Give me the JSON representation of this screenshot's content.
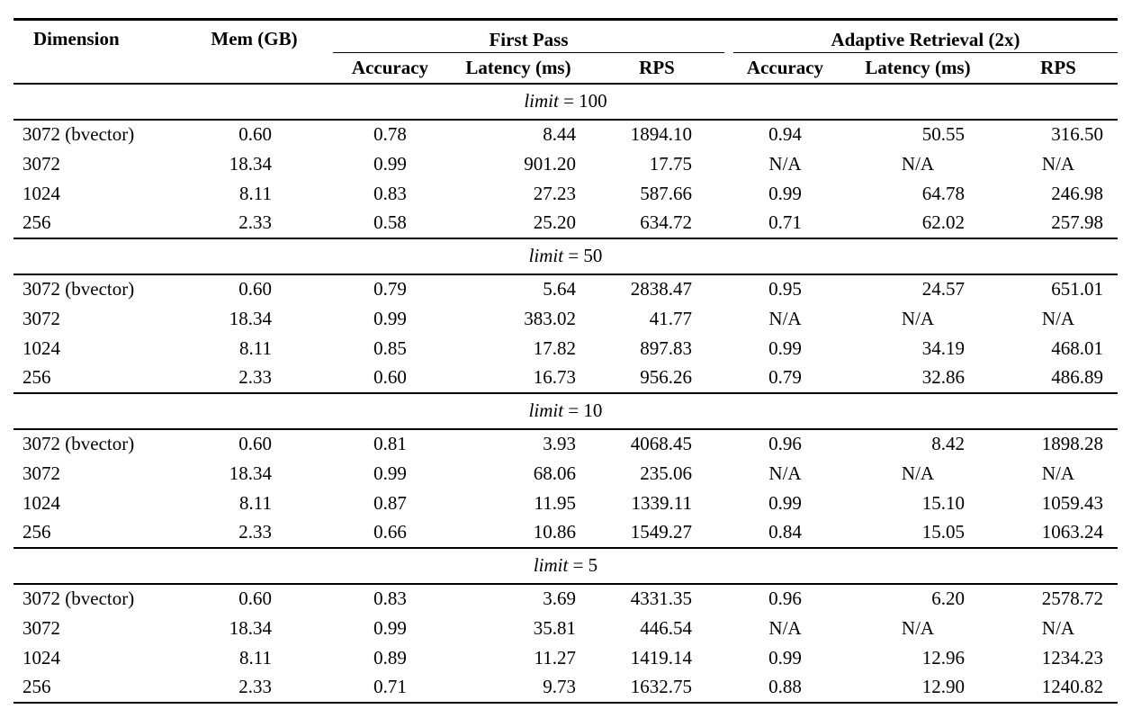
{
  "table": {
    "headers": {
      "dimension": "Dimension",
      "mem": "Mem (GB)",
      "group_first_pass": "First Pass",
      "group_adaptive": "Adaptive Retrieval (2x)",
      "sub": [
        "Accuracy",
        "Latency (ms)",
        "RPS",
        "Accuracy",
        "Latency (ms)",
        "RPS"
      ]
    },
    "sections": [
      {
        "limit_var": "limit",
        "limit_eq": "= 100",
        "rows": [
          [
            "3072 (bvector)",
            "0.60",
            "0.78",
            "8.44",
            "1894.10",
            "0.94",
            "50.55",
            "316.50"
          ],
          [
            "3072",
            "18.34",
            "0.99",
            "901.20",
            "17.75",
            "N/A",
            "N/A",
            "N/A"
          ],
          [
            "1024",
            "8.11",
            "0.83",
            "27.23",
            "587.66",
            "0.99",
            "64.78",
            "246.98"
          ],
          [
            "256",
            "2.33",
            "0.58",
            "25.20",
            "634.72",
            "0.71",
            "62.02",
            "257.98"
          ]
        ]
      },
      {
        "limit_var": "limit",
        "limit_eq": "= 50",
        "rows": [
          [
            "3072 (bvector)",
            "0.60",
            "0.79",
            "5.64",
            "2838.47",
            "0.95",
            "24.57",
            "651.01"
          ],
          [
            "3072",
            "18.34",
            "0.99",
            "383.02",
            "41.77",
            "N/A",
            "N/A",
            "N/A"
          ],
          [
            "1024",
            "8.11",
            "0.85",
            "17.82",
            "897.83",
            "0.99",
            "34.19",
            "468.01"
          ],
          [
            "256",
            "2.33",
            "0.60",
            "16.73",
            "956.26",
            "0.79",
            "32.86",
            "486.89"
          ]
        ]
      },
      {
        "limit_var": "limit",
        "limit_eq": "= 10",
        "rows": [
          [
            "3072 (bvector)",
            "0.60",
            "0.81",
            "3.93",
            "4068.45",
            "0.96",
            "8.42",
            "1898.28"
          ],
          [
            "3072",
            "18.34",
            "0.99",
            "68.06",
            "235.06",
            "N/A",
            "N/A",
            "N/A"
          ],
          [
            "1024",
            "8.11",
            "0.87",
            "11.95",
            "1339.11",
            "0.99",
            "15.10",
            "1059.43"
          ],
          [
            "256",
            "2.33",
            "0.66",
            "10.86",
            "1549.27",
            "0.84",
            "15.05",
            "1063.24"
          ]
        ]
      },
      {
        "limit_var": "limit",
        "limit_eq": "= 5",
        "rows": [
          [
            "3072 (bvector)",
            "0.60",
            "0.83",
            "3.69",
            "4331.35",
            "0.96",
            "6.20",
            "2578.72"
          ],
          [
            "3072",
            "18.34",
            "0.99",
            "35.81",
            "446.54",
            "N/A",
            "N/A",
            "N/A"
          ],
          [
            "1024",
            "8.11",
            "0.89",
            "11.27",
            "1419.14",
            "0.99",
            "12.96",
            "1234.23"
          ],
          [
            "256",
            "2.33",
            "0.71",
            "9.73",
            "1632.75",
            "0.88",
            "12.90",
            "1240.82"
          ]
        ]
      }
    ]
  }
}
